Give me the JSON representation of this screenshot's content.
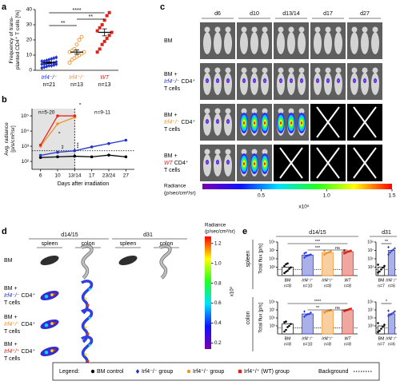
{
  "panel_labels": [
    "a",
    "b",
    "c",
    "d",
    "e"
  ],
  "panel_a": {
    "y_label": [
      "Frequency of trans-",
      "planted CD4⁺ T cells [%]"
    ],
    "ylim": [
      0,
      40
    ],
    "yticks": [
      0,
      10,
      20,
      30,
      40
    ],
    "groups": [
      {
        "genotype": "Irf4⁻/⁻",
        "n": "n=21",
        "color": "#2233c8",
        "marker": "diamond",
        "values": [
          1.5,
          2,
          2.5,
          3,
          3,
          3.5,
          4,
          4,
          4,
          4.5,
          5,
          5,
          5,
          5.5,
          6,
          6,
          6.5,
          7,
          7.5,
          8,
          8.5
        ],
        "mean": 5,
        "sem": 0.5
      },
      {
        "genotype": "Irf4⁺/⁻",
        "n": "n=13",
        "color": "#f0922b",
        "marker": "circle-open",
        "values": [
          5,
          7,
          8,
          9,
          10,
          11,
          12,
          12,
          13,
          14,
          17,
          20,
          22
        ],
        "mean": 12,
        "sem": 1.4
      },
      {
        "genotype": "WT",
        "n": "n=13",
        "color": "#d9261c",
        "marker": "square",
        "values": [
          12,
          14,
          17,
          19,
          21,
          23,
          25,
          26,
          28,
          30,
          33,
          36,
          38
        ],
        "mean": 25,
        "sem": 2.3
      }
    ],
    "significance": [
      "**",
      "****",
      "**"
    ]
  },
  "panel_b": {
    "y_label": [
      "Avg. radiance",
      "[p/s/cm²/sr]"
    ],
    "x_label": "Days after irradiation",
    "categories": [
      "6",
      "10",
      "13/14",
      "17",
      "23/24",
      "27"
    ],
    "log_scale": true,
    "ylim": [
      30,
      300000
    ],
    "yticks": [
      {
        "value": 100,
        "label": "10²"
      },
      {
        "value": 1000,
        "label": "10³"
      },
      {
        "value": 10000,
        "label": "10⁴"
      },
      {
        "value": 100000,
        "label": "10⁵"
      }
    ],
    "background": 500,
    "series": [
      {
        "color": "#000000",
        "values": [
          180,
          200,
          220,
          200,
          260,
          200
        ]
      },
      {
        "color": "#2233c8",
        "values": [
          250,
          400,
          500,
          900,
          1500,
          2500
        ]
      },
      {
        "color": "#f0922b",
        "values": [
          1000,
          30000,
          80000,
          null,
          null,
          null
        ]
      },
      {
        "color": "#e8261c",
        "values": [
          1200,
          100000,
          100000,
          null,
          null,
          null
        ]
      }
    ],
    "annotations": [
      "n=5-20",
      "n=9-11"
    ],
    "significance": [
      "*",
      "**",
      "***",
      "*"
    ]
  },
  "panel_c": {
    "days": [
      "d6",
      "d10",
      "d13/14",
      "d17",
      "d27"
    ],
    "rows": [
      {
        "lines": [
          "BM"
        ]
      },
      {
        "lines": [
          "BM +",
          {
            "genotype": "Irf4⁻/⁻",
            "rest": " CD4⁺",
            "color": "#2233c8"
          },
          "T cells"
        ]
      },
      {
        "lines": [
          "BM +",
          {
            "genotype": "Irf4⁺/⁻",
            "rest": " CD4⁺",
            "color": "#f0922b"
          },
          "T cells"
        ]
      },
      {
        "lines": [
          "BM +",
          {
            "genotype": "WT",
            "rest": " CD4⁺",
            "color": "#d9261c"
          },
          "T cells"
        ]
      }
    ],
    "colorbar": {
      "title": [
        "Radiance",
        "(p/sec/cm²/sr)"
      ],
      "lim": [
        0.05,
        1.5
      ],
      "ticks": [
        0.5,
        {
          "value": 1,
          "label": "1.0"
        },
        1.5
      ],
      "scale_label": "x10⁵"
    }
  },
  "panel_d": {
    "timepoints": [
      "d14/15",
      "d31"
    ],
    "organs": [
      "spleen",
      "colon",
      "spleen",
      "colon"
    ],
    "rows": [
      {
        "lines": [
          "BM"
        ]
      },
      {
        "lines": [
          "BM +",
          {
            "genotype": "Irf4⁻/⁻",
            "rest": " CD4⁺",
            "color": "#2233c8"
          },
          "T cells"
        ]
      },
      {
        "lines": [
          "BM +",
          {
            "genotype": "Irf4⁺/⁻",
            "rest": " CD4⁺",
            "color": "#f0922b"
          },
          "T cells"
        ]
      },
      {
        "lines": [
          "BM +",
          {
            "genotype": "Irf4⁺/⁺",
            "rest": " CD4⁺",
            "color": "#d9261c"
          },
          "T cells"
        ]
      }
    ],
    "colorbar": {
      "title": [
        "Radiance",
        "(p/sec/cm²/sr)"
      ],
      "lim": [
        0.14,
        1.27
      ],
      "ticks": [
        0.2,
        0.4,
        0.6,
        0.8,
        {
          "value": 1,
          "label": "1.0"
        },
        1.2
      ],
      "scale_label": "x10⁵"
    }
  },
  "panel_e": {
    "timepoints": [
      "d14/15",
      "d31"
    ],
    "organs": [
      "spleen",
      "colon"
    ],
    "y_label": "Total flux [p/s]",
    "log_scale": true,
    "ylim": [
      10,
      1000000000
    ],
    "yticks": [
      {
        "value": 1000,
        "label": "10³"
      },
      {
        "value": 100000,
        "label": "10⁵"
      },
      {
        "value": 10000000,
        "label": "10⁷"
      },
      {
        "value": 1000000000,
        "label": "10⁹"
      }
    ],
    "background": 300,
    "plots": [
      {
        "bars": [
          {
            "genotype": "BM",
            "n": "n=8",
            "color": "#000000",
            "fill": "#ffffff",
            "value": 1000,
            "points": [
              40,
              80,
              150,
              400,
              900,
              2000,
              5000,
              8000
            ]
          },
          {
            "genotype": "Irf4⁻/⁻",
            "n": "n=10",
            "color": "#2233c8",
            "fill": "#aab0ea",
            "value": 800000,
            "points": [
              200000,
              400000,
              600000,
              800000,
              1000000,
              2000000,
              3000000
            ]
          },
          {
            "genotype": "Irf4⁺/⁻",
            "n": "n=8",
            "color": "#f0922b",
            "fill": "#f8cfa0",
            "value": 3000000,
            "points": [
              1000000,
              2000000,
              3000000,
              4000000,
              6000000,
              8000000
            ]
          },
          {
            "genotype": "WT",
            "n": "n=8",
            "color": "#d9261c",
            "fill": "#f1a6a0",
            "value": 5000000,
            "points": [
              2000000,
              3000000,
              5000000,
              6000000,
              8000000,
              10000000
            ]
          }
        ],
        "significance": [
          "***",
          "***",
          "ns"
        ]
      },
      {
        "bars": [
          {
            "genotype": "BM",
            "n": "n=7",
            "color": "#000000",
            "fill": "#ffffff",
            "value": 1000,
            "points": [
              50,
              100,
              300,
              800,
              2000,
              4000
            ]
          },
          {
            "genotype": "Irf4⁻/⁻",
            "n": "n=6",
            "color": "#2233c8",
            "fill": "#aab0ea",
            "value": 10000000,
            "points": [
              1000000,
              3000000,
              8000000,
              15000000,
              30000000,
              60000000
            ]
          }
        ],
        "significance": [
          "**"
        ]
      },
      {
        "bars": [
          {
            "genotype": "BM",
            "n": "n=8",
            "color": "#000000",
            "fill": "#ffffff",
            "value": 3000,
            "points": [
              40,
              100,
              500,
              1000,
              3000,
              8000,
              12000
            ]
          },
          {
            "genotype": "Irf4⁻/⁻",
            "n": "n=10",
            "color": "#2233c8",
            "fill": "#aab0ea",
            "value": 1000000,
            "points": [
              200000,
              500000,
              800000,
              1000000,
              2000000,
              4000000
            ]
          },
          {
            "genotype": "Irf4⁺/⁻",
            "n": "n=8",
            "color": "#f0922b",
            "fill": "#f8cfa0",
            "value": 5000000,
            "points": [
              2000000,
              4000000,
              5000000,
              7000000,
              10000000
            ]
          },
          {
            "genotype": "WT",
            "n": "n=8",
            "color": "#d9261c",
            "fill": "#f1a6a0",
            "value": 10000000,
            "points": [
              5000000,
              8000000,
              10000000,
              15000000,
              20000000
            ]
          }
        ],
        "significance": [
          "****",
          "**",
          "ns"
        ]
      },
      {
        "bars": [
          {
            "genotype": "BM",
            "n": "n=7",
            "color": "#000000",
            "fill": "#ffffff",
            "value": 1000,
            "points": [
              30,
              60,
              200,
              600,
              2000,
              5000
            ]
          },
          {
            "genotype": "Irf4⁻/⁻",
            "n": "n=6",
            "color": "#2233c8",
            "fill": "#aab0ea",
            "value": 1000000,
            "points": [
              300000,
              600000,
              1000000,
              2000000,
              4000000,
              6000000
            ]
          }
        ],
        "significance": [
          "*"
        ]
      }
    ]
  },
  "legend": {
    "title": "Legend:",
    "items": [
      {
        "label": "BM control",
        "color": "#000000",
        "marker": "circle"
      },
      {
        "label": "Irf4⁻/⁻ group",
        "color": "#2233c8",
        "marker": "diamond"
      },
      {
        "label": "Irf4⁺/⁻ group",
        "color": "#f0922b",
        "marker": "circle"
      },
      {
        "label": "Irf4⁺/⁺ (WT) group",
        "color": "#d9261c",
        "marker": "square"
      }
    ],
    "background_label": "Background"
  }
}
